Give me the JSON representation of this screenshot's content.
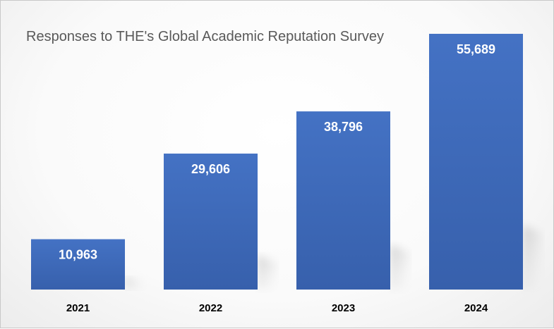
{
  "chart_data": {
    "type": "bar",
    "title": "Responses to THE's Global Academic Reputation Survey",
    "categories": [
      "2021",
      "2022",
      "2023",
      "2024"
    ],
    "values": [
      10963,
      29606,
      38796,
      55689
    ],
    "data_labels": [
      "10,963",
      "29,606",
      "38,796",
      "55,689"
    ],
    "xlabel": "",
    "ylabel": "",
    "ylim": [
      0,
      55689
    ],
    "grid": false,
    "legend": "none",
    "colors": {
      "bar_top": "#4472C4",
      "bar_bottom": "#3A62AE",
      "label": "#ffffff",
      "title": "#595959",
      "tick": "#000000"
    }
  }
}
